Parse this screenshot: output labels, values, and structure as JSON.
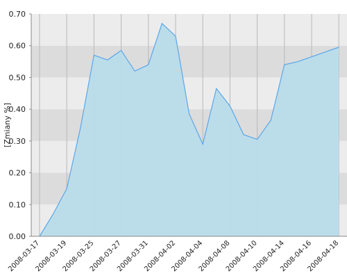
{
  "chart_data": {
    "type": "area",
    "y_label": "[Zmiany %]",
    "categories": [
      "2008-03-17",
      null,
      "2008-03-19",
      null,
      "2008-03-25",
      null,
      "2008-03-27",
      null,
      "2008-03-31",
      null,
      "2008-04-02",
      null,
      "2008-04-04",
      null,
      "2008-04-08",
      null,
      "2008-04-10",
      null,
      "2008-04-14",
      null,
      "2008-04-16",
      null,
      "2008-04-18"
    ],
    "values": [
      0.0,
      0.07,
      0.15,
      0.34,
      0.57,
      0.555,
      0.585,
      0.52,
      0.54,
      0.67,
      0.63,
      0.385,
      0.29,
      0.465,
      0.41,
      0.32,
      0.305,
      0.365,
      0.54,
      0.55,
      0.565,
      0.58,
      0.595
    ],
    "color": "#5aa6e8",
    "fill": "#b8dcea",
    "ylim": [
      0,
      0.7
    ],
    "yticks": [
      {
        "value": 0,
        "label": "0.00"
      },
      {
        "value": 0.1,
        "label": "0.10"
      },
      {
        "value": 0.2,
        "label": "0.20"
      },
      {
        "value": 0.3,
        "label": "0.30"
      },
      {
        "value": 0.4,
        "label": "0.40"
      },
      {
        "value": 0.5,
        "label": "0.50"
      },
      {
        "value": 0.6,
        "label": "0.60"
      },
      {
        "value": 0.7,
        "label": "0.70"
      }
    ],
    "grid": true
  }
}
